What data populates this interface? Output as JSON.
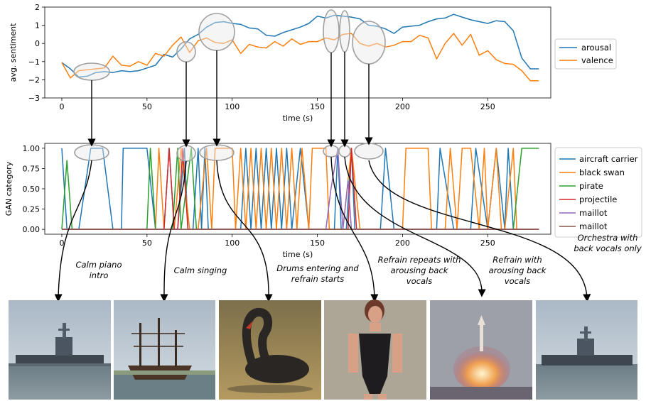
{
  "chart_data": [
    {
      "type": "line",
      "xlabel": "time (s)",
      "ylabel": "avg. sentiment",
      "xlim": [
        -10,
        287
      ],
      "ylim": [
        -3,
        2
      ],
      "xticks": [
        0,
        50,
        100,
        150,
        200,
        250
      ],
      "yticks": [
        -3,
        -2,
        -1,
        0,
        1,
        2
      ],
      "legend_position": "right",
      "grid": false,
      "series": [
        {
          "name": "arousal",
          "color": "#1f77b4",
          "x": [
            0,
            5,
            10,
            15,
            20,
            25,
            30,
            35,
            40,
            45,
            50,
            55,
            60,
            65,
            70,
            75,
            80,
            85,
            90,
            95,
            100,
            105,
            110,
            115,
            120,
            125,
            130,
            135,
            140,
            145,
            150,
            155,
            160,
            165,
            170,
            175,
            180,
            185,
            190,
            195,
            200,
            205,
            210,
            215,
            220,
            225,
            230,
            235,
            240,
            245,
            250,
            255,
            260,
            265,
            270,
            275,
            280
          ],
          "y": [
            -1.05,
            -1.4,
            -1.85,
            -1.8,
            -1.6,
            -1.55,
            -1.6,
            -1.5,
            -1.55,
            -1.5,
            -1.35,
            -1.2,
            -0.6,
            -0.75,
            -0.3,
            0.25,
            0.5,
            0.9,
            1.15,
            1.2,
            1.1,
            1.05,
            0.85,
            0.8,
            0.45,
            0.4,
            0.6,
            0.75,
            0.9,
            1.1,
            1.5,
            1.4,
            1.55,
            1.5,
            1.45,
            1.35,
            1.0,
            0.95,
            0.8,
            0.55,
            0.9,
            0.95,
            1.0,
            1.2,
            1.35,
            1.4,
            1.6,
            1.45,
            1.3,
            1.2,
            1.1,
            1.25,
            1.2,
            0.7,
            -0.8,
            -1.4,
            -1.4
          ]
        },
        {
          "name": "valence",
          "color": "#ff7f0e",
          "x": [
            0,
            5,
            10,
            15,
            20,
            25,
            30,
            35,
            40,
            45,
            50,
            55,
            60,
            65,
            70,
            75,
            80,
            85,
            90,
            95,
            100,
            105,
            110,
            115,
            120,
            125,
            130,
            135,
            140,
            145,
            150,
            155,
            160,
            165,
            170,
            175,
            180,
            185,
            190,
            195,
            200,
            205,
            210,
            215,
            220,
            225,
            230,
            235,
            240,
            245,
            250,
            255,
            260,
            265,
            270,
            275,
            280
          ],
          "y": [
            -1.05,
            -1.9,
            -1.5,
            -1.45,
            -1.4,
            -1.35,
            -0.7,
            -1.2,
            -1.25,
            -1.0,
            -1.2,
            -0.55,
            -0.7,
            -0.1,
            0.35,
            -0.5,
            0.15,
            0.3,
            0.05,
            0.0,
            0.2,
            -0.55,
            -0.05,
            -0.2,
            -0.25,
            0.1,
            -0.15,
            0.25,
            -0.05,
            0.1,
            0.1,
            0.3,
            0.2,
            0.5,
            0.55,
            0.0,
            -0.15,
            0.0,
            -0.2,
            -0.1,
            0.1,
            0.1,
            0.45,
            0.3,
            -0.85,
            0.0,
            0.55,
            -0.1,
            0.5,
            -0.65,
            -0.4,
            -0.9,
            -1.1,
            -1.15,
            -1.5,
            -2.05,
            -2.05
          ]
        }
      ]
    },
    {
      "type": "line",
      "xlabel": "time (s)",
      "ylabel": "GAN category",
      "xlim": [
        -10,
        287
      ],
      "ylim": [
        -0.06,
        1.06
      ],
      "xticks": [
        0,
        50,
        100,
        150,
        200,
        250
      ],
      "yticks": [
        0.0,
        0.25,
        0.5,
        0.75,
        1.0
      ],
      "ytick_labels": [
        "0.00",
        "0.25",
        "0.50",
        "0.75",
        "1.00"
      ],
      "legend_position": "right",
      "grid": false,
      "series": [
        {
          "name": "aircraft carrier",
          "color": "#1f77b4",
          "x": [
            0,
            3,
            10,
            17,
            24,
            30,
            35,
            36,
            50,
            55,
            60,
            63,
            66,
            68,
            72,
            74,
            77,
            80,
            82,
            84,
            86,
            90,
            95,
            100,
            105,
            108,
            111,
            114,
            117,
            120,
            123,
            126,
            129,
            132,
            135,
            140,
            145,
            150,
            160,
            162,
            164,
            167,
            170,
            172,
            175,
            178,
            181,
            184,
            187,
            190,
            195,
            200,
            205,
            210,
            215,
            218,
            220,
            222,
            230,
            235,
            240,
            243,
            250,
            255,
            260,
            262,
            265,
            270,
            275,
            280
          ],
          "y": [
            1,
            0,
            0,
            1,
            1,
            0,
            0,
            1,
            1,
            0,
            0,
            1,
            0,
            0,
            1,
            0,
            0,
            1,
            0,
            1,
            0,
            0,
            0,
            0,
            0,
            1,
            0,
            1,
            0,
            1,
            0,
            1,
            0,
            1,
            0,
            1,
            0,
            0,
            0,
            1,
            0,
            0,
            1,
            0,
            0,
            0,
            0,
            0,
            0,
            1,
            0,
            0,
            0,
            0,
            0,
            0,
            0,
            1,
            0,
            0,
            0,
            1,
            0,
            1,
            0,
            1,
            0,
            0,
            0,
            0
          ]
        },
        {
          "name": "black swan",
          "color": "#ff7f0e",
          "x": [
            0,
            50,
            55,
            57,
            60,
            63,
            66,
            70,
            75,
            78,
            80,
            85,
            88,
            90,
            95,
            100,
            102,
            105,
            108,
            111,
            114,
            117,
            120,
            123,
            126,
            129,
            132,
            135,
            138,
            141,
            145,
            147,
            150,
            155,
            157,
            160,
            165,
            170,
            175,
            180,
            190,
            200,
            202,
            205,
            210,
            215,
            217,
            220,
            225,
            228,
            232,
            235,
            237,
            240,
            245,
            248,
            250,
            255,
            258,
            260,
            265,
            267,
            270,
            275,
            280
          ],
          "y": [
            0,
            0,
            0,
            1,
            0,
            0,
            0,
            1,
            0,
            0,
            0,
            1,
            0,
            1,
            1,
            1,
            0,
            1,
            0,
            1,
            0,
            1,
            0,
            1,
            0,
            1,
            0,
            1,
            0,
            1,
            0,
            1,
            1,
            1,
            0,
            0,
            0,
            1,
            0,
            0,
            0,
            0,
            1,
            1,
            1,
            1,
            0,
            0,
            0,
            1,
            0,
            1,
            1,
            1,
            0,
            1,
            0,
            1,
            0,
            0,
            1,
            0,
            0,
            0,
            0
          ]
        },
        {
          "name": "pirate",
          "color": "#2ca02c",
          "x": [
            0,
            3,
            6,
            10,
            50,
            52,
            55,
            58,
            65,
            68,
            70,
            76,
            79,
            82,
            100,
            190,
            250,
            260,
            265,
            270,
            275,
            280
          ],
          "y": [
            0,
            0.85,
            0,
            0,
            0,
            1,
            0,
            0,
            0,
            1,
            0,
            1,
            0,
            0,
            0,
            0,
            0,
            0,
            0,
            1,
            1,
            1
          ]
        },
        {
          "name": "projectile",
          "color": "#d62728",
          "x": [
            0,
            60,
            63,
            66,
            68,
            71,
            74,
            100,
            168,
            170,
            173,
            180,
            280
          ],
          "y": [
            0,
            0,
            1,
            0,
            0,
            1,
            0,
            0,
            0,
            1,
            0,
            0,
            0
          ]
        },
        {
          "name": "maillot",
          "color": "#9467bd",
          "x": [
            0,
            155,
            158,
            162,
            165,
            168,
            170,
            172,
            180,
            280
          ],
          "y": [
            0,
            0,
            0.5,
            1,
            0,
            0.6,
            0,
            0,
            0,
            0
          ]
        },
        {
          "name": "maillot",
          "color": "#8c564b",
          "x": [
            0,
            280
          ],
          "y": [
            0,
            0
          ]
        }
      ]
    }
  ],
  "captions": {
    "c1": [
      "Calm piano",
      "intro"
    ],
    "c2": [
      "Calm singing"
    ],
    "c3": [
      "Drums entering and",
      "refrain starts"
    ],
    "c4": [
      "Refrain repeats with",
      "arousing back",
      "vocals"
    ],
    "c5": [
      "Refrain with",
      "arousing back",
      "vocals"
    ],
    "c6": [
      "Orchestra with",
      "back vocals only"
    ]
  },
  "images": [
    {
      "name": "aircraft-carrier-image",
      "subject": "aircraft carrier"
    },
    {
      "name": "pirate-ship-image",
      "subject": "pirate"
    },
    {
      "name": "black-swan-image",
      "subject": "black swan"
    },
    {
      "name": "maillot-image",
      "subject": "maillot"
    },
    {
      "name": "projectile-image",
      "subject": "projectile"
    },
    {
      "name": "aircraft-carrier-image-2",
      "subject": "aircraft carrier"
    }
  ]
}
